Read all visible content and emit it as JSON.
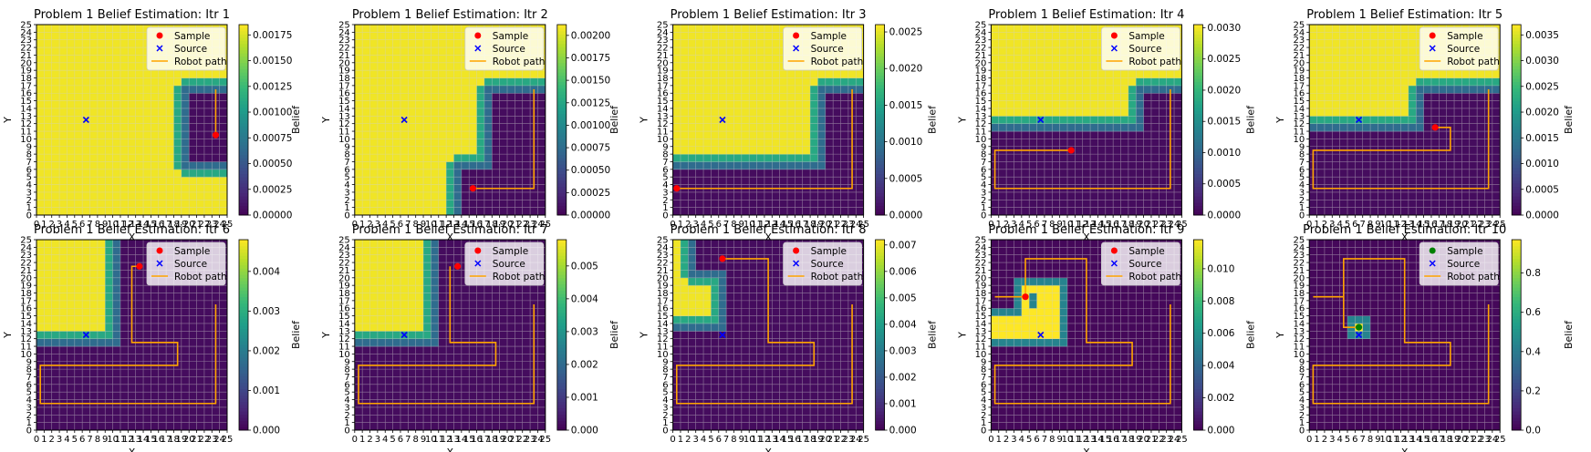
{
  "figure": {
    "rows": 2,
    "cols": 5
  },
  "chart_data": [
    {
      "type": "heatmap",
      "title": "Problem 1 Belief Estimation: Itr 1",
      "xlabel": "X",
      "ylabel": "Y",
      "colorbar_label": "Belief",
      "xlim": [
        0,
        25
      ],
      "ylim": [
        0,
        25
      ],
      "grid": true,
      "colormap": "viridis",
      "colorbar_ticks": [
        "0.00000",
        "0.00025",
        "0.00050",
        "0.00075",
        "0.00100",
        "0.00125",
        "0.00150",
        "0.00175"
      ],
      "colorbar_max": 0.00185,
      "legend": {
        "placement": "upper-right",
        "entries": [
          "Sample",
          "Source",
          "Robot path"
        ]
      },
      "source": [
        6,
        12
      ],
      "sample": {
        "x": 23,
        "y": 10,
        "color": "#ff0000"
      },
      "path": [
        [
          23,
          10
        ],
        [
          23,
          16
        ]
      ],
      "grid_type": "L",
      "explored": [
        [
          20,
          7,
          25,
          16
        ]
      ]
    },
    {
      "type": "heatmap",
      "title": "Problem 1 Belief Estimation: Itr 2",
      "xlabel": "X",
      "ylabel": "Y",
      "colorbar_label": "Belief",
      "xlim": [
        0,
        25
      ],
      "ylim": [
        0,
        25
      ],
      "grid": true,
      "colormap": "viridis",
      "colorbar_ticks": [
        "0.00000",
        "0.00025",
        "0.00050",
        "0.00075",
        "0.00100",
        "0.00125",
        "0.00150",
        "0.00175",
        "0.00200"
      ],
      "colorbar_max": 0.00212,
      "legend": {
        "placement": "upper-right",
        "entries": [
          "Sample",
          "Source",
          "Robot path"
        ]
      },
      "source": [
        6,
        12
      ],
      "sample": {
        "x": 15,
        "y": 3,
        "color": "#ff0000"
      },
      "path": [
        [
          15,
          3
        ],
        [
          23,
          3
        ],
        [
          23,
          16
        ]
      ],
      "explored": [
        [
          14,
          0,
          25,
          6
        ],
        [
          18,
          0,
          25,
          16
        ]
      ]
    },
    {
      "type": "heatmap",
      "title": "Problem 1 Belief Estimation: Itr 3",
      "xlabel": "X",
      "ylabel": "Y",
      "colorbar_label": "Belief",
      "xlim": [
        0,
        25
      ],
      "ylim": [
        0,
        25
      ],
      "grid": true,
      "colormap": "viridis",
      "colorbar_ticks": [
        "0.0000",
        "0.0005",
        "0.0010",
        "0.0015",
        "0.0020",
        "0.0025"
      ],
      "colorbar_max": 0.0026,
      "legend": {
        "placement": "upper-right",
        "entries": [
          "Sample",
          "Source",
          "Robot path"
        ]
      },
      "source": [
        6,
        12
      ],
      "sample": {
        "x": 0,
        "y": 3,
        "color": "#ff0000"
      },
      "path": [
        [
          0,
          3
        ],
        [
          23,
          3
        ],
        [
          23,
          16
        ]
      ],
      "explored": [
        [
          0,
          0,
          25,
          6
        ],
        [
          20,
          0,
          25,
          16
        ]
      ]
    },
    {
      "type": "heatmap",
      "title": "Problem 1 Belief Estimation: Itr 4",
      "xlabel": "X",
      "ylabel": "Y",
      "colorbar_label": "Belief",
      "xlim": [
        0,
        25
      ],
      "ylim": [
        0,
        25
      ],
      "grid": true,
      "colormap": "viridis",
      "colorbar_ticks": [
        "0.0000",
        "0.0005",
        "0.0010",
        "0.0015",
        "0.0020",
        "0.0025",
        "0.0030"
      ],
      "colorbar_max": 0.00305,
      "legend": {
        "placement": "upper-right",
        "entries": [
          "Sample",
          "Source",
          "Robot path"
        ]
      },
      "source": [
        6,
        12
      ],
      "sample": {
        "x": 10,
        "y": 8,
        "color": "#ff0000"
      },
      "path": [
        [
          0,
          8
        ],
        [
          10,
          8
        ],
        [
          10,
          8
        ],
        [
          0,
          8
        ],
        [
          0,
          3
        ],
        [
          23,
          3
        ],
        [
          23,
          16
        ]
      ],
      "explored": [
        [
          0,
          0,
          25,
          11
        ],
        [
          20,
          0,
          25,
          16
        ]
      ]
    },
    {
      "type": "heatmap",
      "title": "Problem 1 Belief Estimation: Itr 5",
      "xlabel": "X",
      "ylabel": "Y",
      "colorbar_label": "Belief",
      "xlim": [
        0,
        25
      ],
      "ylim": [
        0,
        25
      ],
      "grid": true,
      "colormap": "viridis",
      "colorbar_ticks": [
        "0.0000",
        "0.0005",
        "0.0010",
        "0.0015",
        "0.0020",
        "0.0025",
        "0.0030",
        "0.0035"
      ],
      "colorbar_max": 0.0037,
      "legend": {
        "placement": "upper-right",
        "entries": [
          "Sample",
          "Source",
          "Robot path"
        ]
      },
      "source": [
        6,
        12
      ],
      "sample": {
        "x": 16,
        "y": 11,
        "color": "#ff0000"
      },
      "path": [
        [
          16,
          11
        ],
        [
          18,
          11
        ],
        [
          18,
          8
        ],
        [
          0,
          8
        ],
        [
          0,
          3
        ],
        [
          23,
          3
        ],
        [
          23,
          16
        ]
      ],
      "explored": [
        [
          0,
          0,
          25,
          11
        ],
        [
          15,
          0,
          25,
          16
        ]
      ]
    },
    {
      "type": "heatmap",
      "title": "Problem 1 Belief Estimation: Itr 6",
      "xlabel": "X",
      "ylabel": "Y",
      "colorbar_label": "Belief",
      "xlim": [
        0,
        25
      ],
      "ylim": [
        0,
        25
      ],
      "grid": true,
      "colormap": "viridis",
      "colorbar_ticks": [
        "0.000",
        "0.001",
        "0.002",
        "0.003",
        "0.004"
      ],
      "colorbar_max": 0.0048,
      "legend": {
        "placement": "upper-right",
        "entries": [
          "Sample",
          "Source",
          "Robot path"
        ]
      },
      "source": [
        6,
        12
      ],
      "sample": {
        "x": 13,
        "y": 21,
        "color": "#ff0000"
      },
      "path": [
        [
          13,
          21
        ],
        [
          12,
          21
        ],
        [
          12,
          11
        ],
        [
          18,
          11
        ],
        [
          18,
          8
        ],
        [
          0,
          8
        ],
        [
          0,
          3
        ],
        [
          23,
          3
        ],
        [
          23,
          16
        ]
      ],
      "explored": [
        [
          0,
          0,
          25,
          11
        ],
        [
          11,
          0,
          25,
          25
        ]
      ]
    },
    {
      "type": "heatmap",
      "title": "Problem 1 Belief Estimation: Itr 7",
      "xlabel": "X",
      "ylabel": "Y",
      "colorbar_label": "Belief",
      "xlim": [
        0,
        25
      ],
      "ylim": [
        0,
        25
      ],
      "grid": true,
      "colormap": "viridis",
      "colorbar_ticks": [
        "0.000",
        "0.001",
        "0.002",
        "0.003",
        "0.004",
        "0.005"
      ],
      "colorbar_max": 0.0058,
      "legend": {
        "placement": "upper-right",
        "entries": [
          "Sample",
          "Source",
          "Robot path"
        ]
      },
      "source": [
        6,
        12
      ],
      "sample": {
        "x": 13,
        "y": 21,
        "color": "#ff0000"
      },
      "path": [
        [
          12,
          21
        ],
        [
          12,
          11
        ],
        [
          18,
          11
        ],
        [
          18,
          8
        ],
        [
          0,
          8
        ],
        [
          0,
          3
        ],
        [
          23,
          3
        ],
        [
          23,
          16
        ]
      ],
      "explored": [
        [
          0,
          0,
          25,
          11
        ],
        [
          11,
          0,
          25,
          25
        ]
      ]
    },
    {
      "type": "heatmap",
      "title": "Problem 1 Belief Estimation: Itr 8",
      "xlabel": "X",
      "ylabel": "Y",
      "colorbar_label": "Belief",
      "xlim": [
        0,
        25
      ],
      "ylim": [
        0,
        25
      ],
      "grid": true,
      "colormap": "viridis",
      "colorbar_ticks": [
        "0.000",
        "0.001",
        "0.002",
        "0.003",
        "0.004",
        "0.005",
        "0.006",
        "0.007"
      ],
      "colorbar_max": 0.0072,
      "legend": {
        "placement": "upper-right",
        "entries": [
          "Sample",
          "Source",
          "Robot path"
        ]
      },
      "source": [
        6,
        12
      ],
      "sample": {
        "x": 6,
        "y": 22,
        "color": "#ff0000"
      },
      "path": [
        [
          6,
          22
        ],
        [
          12,
          22
        ],
        [
          12,
          11
        ],
        [
          18,
          11
        ],
        [
          18,
          8
        ],
        [
          0,
          8
        ],
        [
          0,
          3
        ],
        [
          23,
          3
        ],
        [
          23,
          16
        ]
      ],
      "explored": [
        [
          0,
          0,
          25,
          13
        ],
        [
          7,
          0,
          25,
          25
        ],
        [
          3,
          21,
          25,
          25
        ]
      ]
    },
    {
      "type": "heatmap",
      "title": "Problem 1 Belief Estimation: Itr 9",
      "xlabel": "X",
      "ylabel": "Y",
      "colorbar_label": "Belief",
      "xlim": [
        0,
        25
      ],
      "ylim": [
        0,
        25
      ],
      "grid": true,
      "colormap": "viridis",
      "colorbar_ticks": [
        "0.000",
        "0.002",
        "0.004",
        "0.006",
        "0.008",
        "0.010"
      ],
      "colorbar_max": 0.0118,
      "legend": {
        "placement": "upper-right",
        "entries": [
          "Sample",
          "Source",
          "Robot path"
        ]
      },
      "source": [
        6,
        12
      ],
      "sample": {
        "x": 4,
        "y": 17,
        "color": "#ff0000"
      },
      "path": [
        [
          0,
          17
        ],
        [
          4,
          17
        ],
        [
          4,
          22
        ],
        [
          12,
          22
        ],
        [
          12,
          11
        ],
        [
          18,
          11
        ],
        [
          18,
          8
        ],
        [
          0,
          8
        ],
        [
          0,
          3
        ],
        [
          23,
          3
        ],
        [
          23,
          16
        ]
      ],
      "hot": [
        [
          0,
          12,
          4,
          15
        ],
        [
          4,
          12,
          9,
          19
        ]
      ],
      "hot_holes": [
        [
          5,
          16,
          6,
          18
        ]
      ],
      "explored": [
        [
          0,
          0,
          25,
          25
        ]
      ]
    },
    {
      "type": "heatmap",
      "title": "Problem 1 Belief Estimation: Itr 10",
      "xlabel": "X",
      "ylabel": "Y",
      "colorbar_label": "Belief",
      "xlim": [
        0,
        25
      ],
      "ylim": [
        0,
        25
      ],
      "grid": true,
      "colormap": "viridis",
      "colorbar_ticks": [
        "0.0",
        "0.2",
        "0.4",
        "0.6",
        "0.8"
      ],
      "colorbar_max": 0.97,
      "legend": {
        "placement": "upper-right",
        "entries": [
          "Sample",
          "Source",
          "Robot path"
        ]
      },
      "source": [
        6,
        12
      ],
      "sample": {
        "x": 6,
        "y": 13,
        "color": "#008000"
      },
      "path": [
        [
          0,
          17
        ],
        [
          4,
          17
        ],
        [
          4,
          13
        ],
        [
          6,
          13
        ],
        [
          4,
          13
        ],
        [
          4,
          22
        ],
        [
          12,
          22
        ],
        [
          12,
          11
        ],
        [
          18,
          11
        ],
        [
          18,
          8
        ],
        [
          0,
          8
        ],
        [
          0,
          3
        ],
        [
          23,
          3
        ],
        [
          23,
          16
        ]
      ],
      "hot": [
        [
          6,
          13,
          7,
          14
        ]
      ],
      "explored": [
        [
          0,
          0,
          25,
          25
        ]
      ]
    }
  ]
}
